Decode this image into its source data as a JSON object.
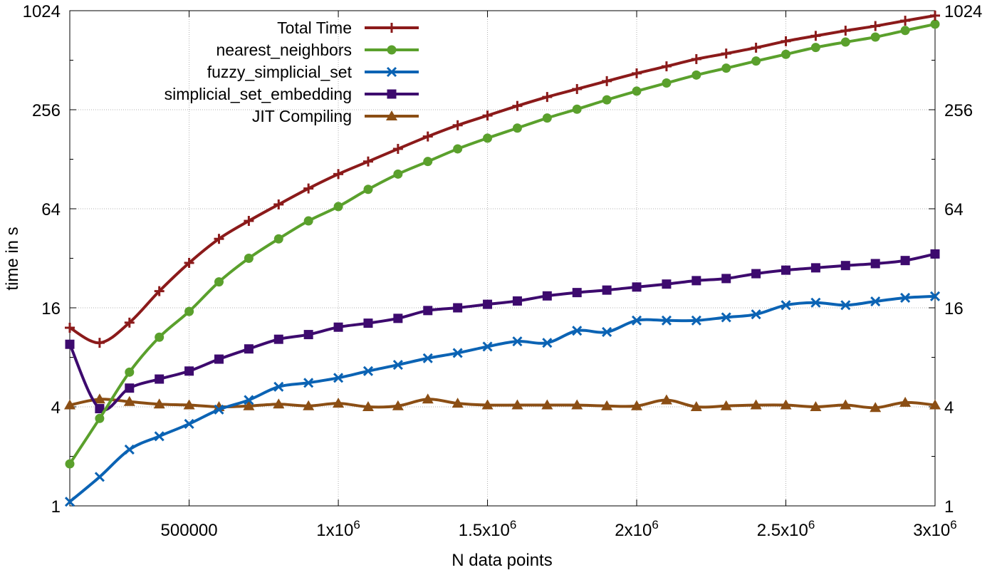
{
  "chart_data": {
    "type": "line",
    "title": "",
    "xlabel": "N data points",
    "ylabel": "time in s",
    "y_scale": "log2",
    "xlim": [
      100000,
      3000000
    ],
    "ylim": [
      1,
      1024
    ],
    "grid": true,
    "legend_position": "top-left",
    "x_ticks": [
      {
        "value": 500000,
        "mant": "500000",
        "exp": ""
      },
      {
        "value": 1000000,
        "mant": "1x10",
        "exp": "6"
      },
      {
        "value": 1500000,
        "mant": "1.5x10",
        "exp": "6"
      },
      {
        "value": 2000000,
        "mant": "2x10",
        "exp": "6"
      },
      {
        "value": 2500000,
        "mant": "2.5x10",
        "exp": "6"
      },
      {
        "value": 3000000,
        "mant": "3x10",
        "exp": "6"
      }
    ],
    "y_ticks": [
      {
        "value": 1,
        "label": "1"
      },
      {
        "value": 4,
        "label": "4"
      },
      {
        "value": 16,
        "label": "16"
      },
      {
        "value": 64,
        "label": "64"
      },
      {
        "value": 256,
        "label": "256"
      },
      {
        "value": 1024,
        "label": "1024"
      }
    ],
    "x": [
      100000,
      200000,
      300000,
      400000,
      500000,
      600000,
      700000,
      800000,
      900000,
      1000000,
      1100000,
      1200000,
      1300000,
      1400000,
      1500000,
      1600000,
      1700000,
      1800000,
      1900000,
      2000000,
      2100000,
      2200000,
      2300000,
      2400000,
      2500000,
      2600000,
      2700000,
      2800000,
      2900000,
      3000000
    ],
    "series": [
      {
        "name": "Total Time",
        "color": "#8b1a1a",
        "marker": "plus",
        "values": [
          12.1,
          9.8,
          13.0,
          20.2,
          30.0,
          42.0,
          54.0,
          68.0,
          85.0,
          104.0,
          124.0,
          148.0,
          176.0,
          206.0,
          236.0,
          270.0,
          306.0,
          342.0,
          382.0,
          426.0,
          470.0,
          520.0,
          562.0,
          610.0,
          668.0,
          720.0,
          774.0,
          826.0,
          890.0,
          956.0
        ]
      },
      {
        "name": "nearest_neighbors",
        "color": "#5aa02c",
        "marker": "circle",
        "values": [
          1.8,
          3.4,
          6.5,
          10.6,
          15.2,
          23.0,
          32.0,
          42.0,
          54.0,
          66.0,
          84.0,
          104.0,
          124.0,
          148.0,
          172.0,
          198.0,
          228.0,
          258.0,
          294.0,
          332.0,
          372.0,
          416.0,
          458.0,
          506.0,
          556.0,
          612.0,
          660.0,
          708.0,
          776.0,
          848.0
        ]
      },
      {
        "name": "fuzzy_simplicial_set",
        "color": "#0b63b4",
        "marker": "x",
        "values": [
          1.06,
          1.5,
          2.2,
          2.65,
          3.15,
          3.85,
          4.4,
          5.3,
          5.6,
          6.0,
          6.6,
          7.2,
          7.9,
          8.5,
          9.3,
          10.0,
          9.8,
          11.6,
          11.4,
          13.4,
          13.4,
          13.4,
          14.0,
          14.6,
          16.6,
          17.2,
          16.6,
          17.5,
          18.4,
          18.8
        ]
      },
      {
        "name": "simplicial_set_embedding",
        "color": "#3d0a6e",
        "marker": "square",
        "values": [
          9.6,
          3.9,
          5.2,
          5.9,
          6.6,
          7.8,
          9.0,
          10.3,
          11.0,
          12.2,
          12.9,
          13.8,
          15.4,
          16.0,
          16.8,
          17.6,
          18.9,
          19.8,
          20.5,
          21.4,
          22.3,
          23.4,
          24.1,
          25.8,
          27.1,
          28.0,
          28.9,
          29.7,
          31.0,
          34.0
        ]
      },
      {
        "name": "JIT Compiling",
        "color": "#8b4e14",
        "marker": "triangle",
        "values": [
          4.1,
          4.45,
          4.3,
          4.15,
          4.1,
          4.0,
          4.05,
          4.15,
          4.05,
          4.2,
          4.0,
          4.05,
          4.45,
          4.2,
          4.1,
          4.1,
          4.1,
          4.1,
          4.05,
          4.05,
          4.4,
          4.0,
          4.05,
          4.1,
          4.1,
          4.0,
          4.1,
          3.95,
          4.25,
          4.1
        ]
      }
    ]
  }
}
